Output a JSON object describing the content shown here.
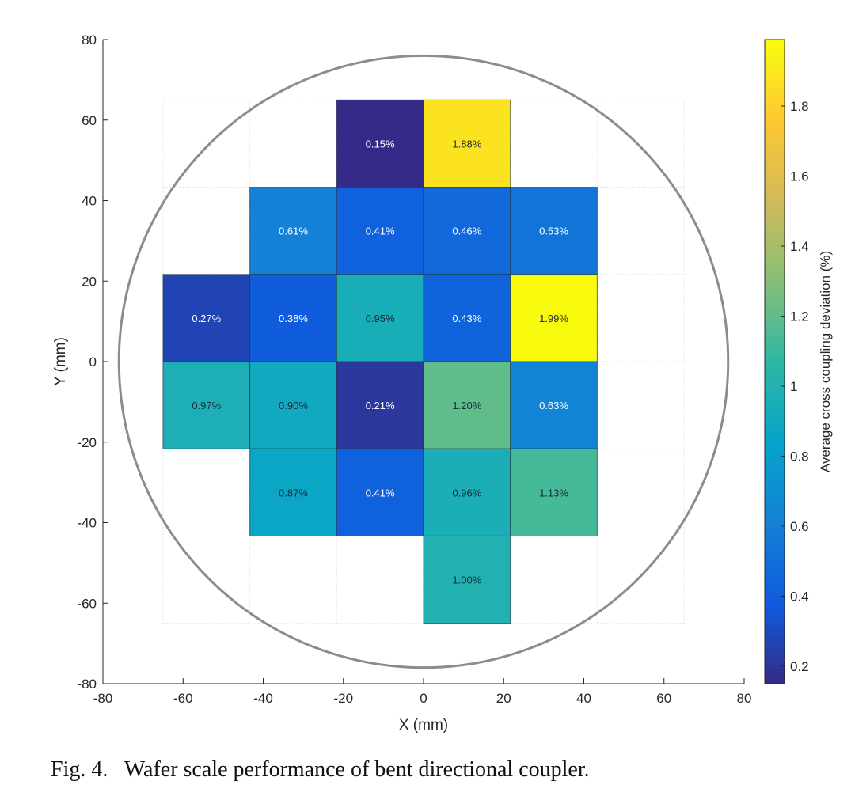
{
  "chart_data": {
    "type": "heatmap",
    "xlabel": "X (mm)",
    "ylabel": "Y (mm)",
    "xlim": [
      -80,
      80
    ],
    "ylim": [
      -80,
      80
    ],
    "xticks": [
      -80,
      -60,
      -40,
      -20,
      0,
      20,
      40,
      60,
      80
    ],
    "yticks": [
      -80,
      -60,
      -40,
      -20,
      0,
      20,
      40,
      60,
      80
    ],
    "grid": true,
    "cell_edges": [
      -65,
      -43.33,
      -21.67,
      0,
      21.67,
      43.33,
      65
    ],
    "wafer_circle_radius_mm": 76,
    "cells": [
      {
        "col": 2,
        "row": 0,
        "value": 0.15,
        "label": "0.15%"
      },
      {
        "col": 3,
        "row": 0,
        "value": 1.88,
        "label": "1.88%"
      },
      {
        "col": 1,
        "row": 1,
        "value": 0.61,
        "label": "0.61%"
      },
      {
        "col": 2,
        "row": 1,
        "value": 0.41,
        "label": "0.41%"
      },
      {
        "col": 3,
        "row": 1,
        "value": 0.46,
        "label": "0.46%"
      },
      {
        "col": 4,
        "row": 1,
        "value": 0.53,
        "label": "0.53%"
      },
      {
        "col": 0,
        "row": 2,
        "value": 0.27,
        "label": "0.27%"
      },
      {
        "col": 1,
        "row": 2,
        "value": 0.38,
        "label": "0.38%"
      },
      {
        "col": 2,
        "row": 2,
        "value": 0.95,
        "label": "0.95%"
      },
      {
        "col": 3,
        "row": 2,
        "value": 0.43,
        "label": "0.43%"
      },
      {
        "col": 4,
        "row": 2,
        "value": 1.99,
        "label": "1.99%"
      },
      {
        "col": 0,
        "row": 3,
        "value": 0.97,
        "label": "0.97%"
      },
      {
        "col": 1,
        "row": 3,
        "value": 0.9,
        "label": "0.90%"
      },
      {
        "col": 2,
        "row": 3,
        "value": 0.21,
        "label": "0.21%"
      },
      {
        "col": 3,
        "row": 3,
        "value": 1.2,
        "label": "1.20%"
      },
      {
        "col": 4,
        "row": 3,
        "value": 0.63,
        "label": "0.63%"
      },
      {
        "col": 1,
        "row": 4,
        "value": 0.87,
        "label": "0.87%"
      },
      {
        "col": 2,
        "row": 4,
        "value": 0.41,
        "label": "0.41%"
      },
      {
        "col": 3,
        "row": 4,
        "value": 0.96,
        "label": "0.96%"
      },
      {
        "col": 4,
        "row": 4,
        "value": 1.13,
        "label": "1.13%"
      },
      {
        "col": 3,
        "row": 5,
        "value": 1.0,
        "label": "1.00%"
      }
    ],
    "colorbar": {
      "label": "Average cross coupling deviation (%)",
      "range": [
        0.15,
        1.99
      ],
      "ticks": [
        0.2,
        0.4,
        0.6,
        0.8,
        1,
        1.2,
        1.4,
        1.6,
        1.8
      ],
      "tick_labels": [
        "0.2",
        "0.4",
        "0.6",
        "0.8",
        "1",
        "1.2",
        "1.4",
        "1.6",
        "1.8"
      ],
      "colormap": "parula",
      "stops": [
        "#352a87",
        "#0f5cdd",
        "#1481d6",
        "#06a4ca",
        "#2eb7a4",
        "#87bf77",
        "#d1bb59",
        "#fec832",
        "#f9fb0e"
      ]
    }
  },
  "caption": "Fig. 4.   Wafer scale performance of bent directional coupler."
}
